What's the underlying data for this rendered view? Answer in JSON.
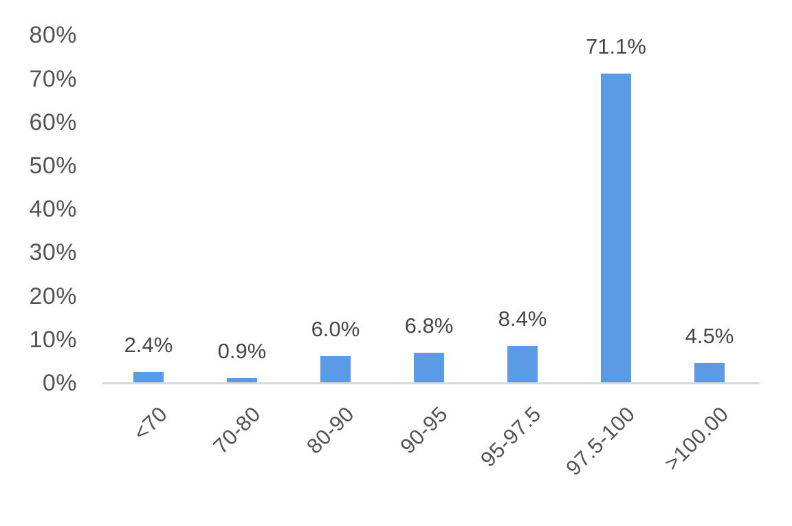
{
  "chart_data": {
    "type": "bar",
    "categories": [
      "<70",
      "70-80",
      "80-90",
      "90-95",
      "95-97.5",
      "97.5-100",
      ">100.00"
    ],
    "values": [
      2.4,
      0.9,
      6.0,
      6.8,
      8.4,
      71.1,
      4.5
    ],
    "data_labels": [
      "2.4%",
      "0.9%",
      "6.0%",
      "6.8%",
      "8.4%",
      "71.1%",
      "4.5%"
    ],
    "title": "",
    "xlabel": "",
    "ylabel": "",
    "ylim": [
      0,
      80
    ],
    "ytick_step": 10,
    "yticks": [
      "0%",
      "10%",
      "20%",
      "30%",
      "40%",
      "50%",
      "60%",
      "70%",
      "80%"
    ],
    "grid": false,
    "legend": false,
    "x_label_rotation_deg": -45,
    "colors": {
      "bar_fill": "#5B9BE5",
      "axis_line": "#D9D9D9",
      "y_tick_text": "#545454",
      "x_tick_text": "#545454",
      "value_label_text": "#474747",
      "background": "#FFFFFF"
    }
  }
}
